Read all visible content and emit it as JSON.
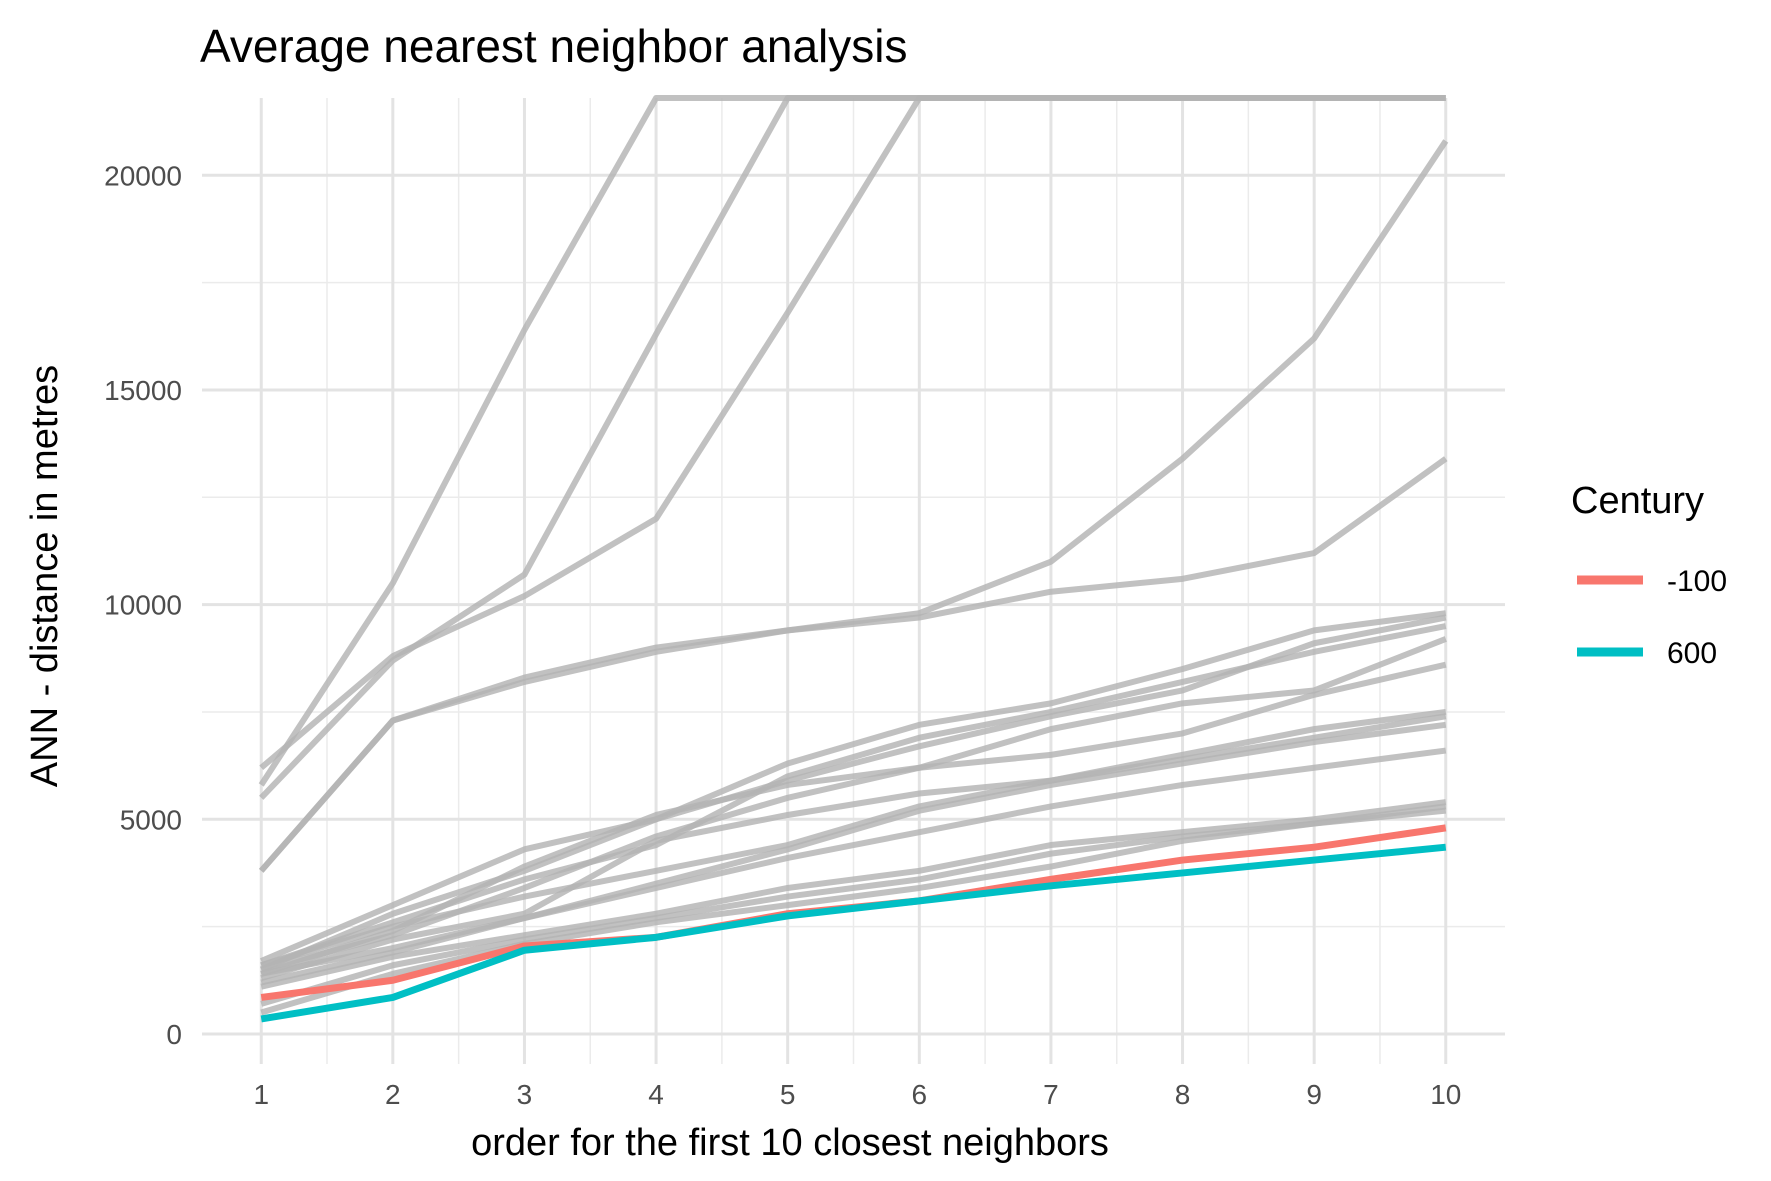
{
  "chart_data": {
    "type": "line",
    "title": "Average nearest neighbor analysis",
    "xlabel": "order for the first 10 closest neighbors",
    "ylabel": "ANN - distance in metres",
    "x": [
      1,
      2,
      3,
      4,
      5,
      6,
      7,
      8,
      9,
      10
    ],
    "x_ticks": [
      "1",
      "2",
      "3",
      "4",
      "5",
      "6",
      "7",
      "8",
      "9",
      "10"
    ],
    "y_ticks": [
      "0",
      "5000",
      "10000",
      "15000",
      "20000"
    ],
    "xlim": [
      0.55,
      10.45
    ],
    "ylim": [
      -700,
      21800
    ],
    "grid": true,
    "legend": {
      "title": "Century",
      "placement": "right",
      "entries": [
        {
          "label": "-100",
          "color": "#F8766D"
        },
        {
          "label": "600",
          "color": "#00BFC4"
        }
      ]
    },
    "background_series_color": "#b3b3b3",
    "background_series": [
      {
        "values": [
          5800,
          10500,
          16400,
          21800,
          21800,
          21800,
          21800,
          21800,
          21800,
          21800
        ]
      },
      {
        "values": [
          5500,
          8700,
          10700,
          16300,
          21800,
          21800,
          21800,
          21800,
          21800,
          21800
        ]
      },
      {
        "values": [
          6200,
          8800,
          10200,
          12000,
          16800,
          21800,
          21800,
          21800,
          21800,
          21800
        ]
      },
      {
        "values": [
          3800,
          7300,
          8200,
          8900,
          9400,
          9800,
          11000,
          13400,
          16200,
          20800
        ]
      },
      {
        "values": [
          3800,
          7300,
          8300,
          9000,
          9400,
          9700,
          10300,
          10600,
          11200,
          13400
        ]
      },
      {
        "values": [
          1700,
          3000,
          4300,
          5000,
          6300,
          7200,
          7700,
          8500,
          9400,
          9800
        ]
      },
      {
        "values": [
          1500,
          2800,
          3800,
          5000,
          5900,
          6700,
          7400,
          8000,
          9100,
          9700
        ]
      },
      {
        "values": [
          1600,
          2600,
          3600,
          4400,
          6000,
          6900,
          7500,
          8200,
          8900,
          9500
        ]
      },
      {
        "values": [
          1400,
          2400,
          3900,
          5100,
          5800,
          6200,
          6500,
          7000,
          7900,
          8600
        ]
      },
      {
        "values": [
          1500,
          2300,
          3400,
          4600,
          5500,
          6200,
          7100,
          7700,
          8000,
          9200
        ]
      },
      {
        "values": [
          1300,
          2200,
          2800,
          4500,
          5100,
          5600,
          5900,
          6500,
          7100,
          7500
        ]
      },
      {
        "values": [
          1600,
          2500,
          3200,
          3800,
          4400,
          5300,
          5900,
          6400,
          6900,
          7400
        ]
      },
      {
        "values": [
          1400,
          2000,
          2700,
          3500,
          4300,
          5200,
          5800,
          6300,
          6800,
          7200
        ]
      },
      {
        "values": [
          1200,
          1900,
          2700,
          3400,
          4100,
          4700,
          5300,
          5800,
          6200,
          6600
        ]
      },
      {
        "values": [
          1100,
          1800,
          2300,
          2800,
          3400,
          3800,
          4400,
          4700,
          5000,
          5400
        ]
      },
      {
        "values": [
          700,
          1600,
          2200,
          2700,
          3200,
          3600,
          4200,
          4600,
          4900,
          5300
        ]
      },
      {
        "values": [
          500,
          1400,
          2100,
          2600,
          3000,
          3400,
          3900,
          4500,
          4900,
          5200
        ]
      }
    ],
    "series": [
      {
        "name": "-100",
        "color": "#F8766D",
        "values": [
          850,
          1250,
          2050,
          2250,
          2800,
          3100,
          3600,
          4050,
          4350,
          4800
        ]
      },
      {
        "name": "600",
        "color": "#00BFC4",
        "values": [
          350,
          850,
          1950,
          2250,
          2750,
          3100,
          3450,
          3750,
          4050,
          4350
        ]
      }
    ]
  }
}
